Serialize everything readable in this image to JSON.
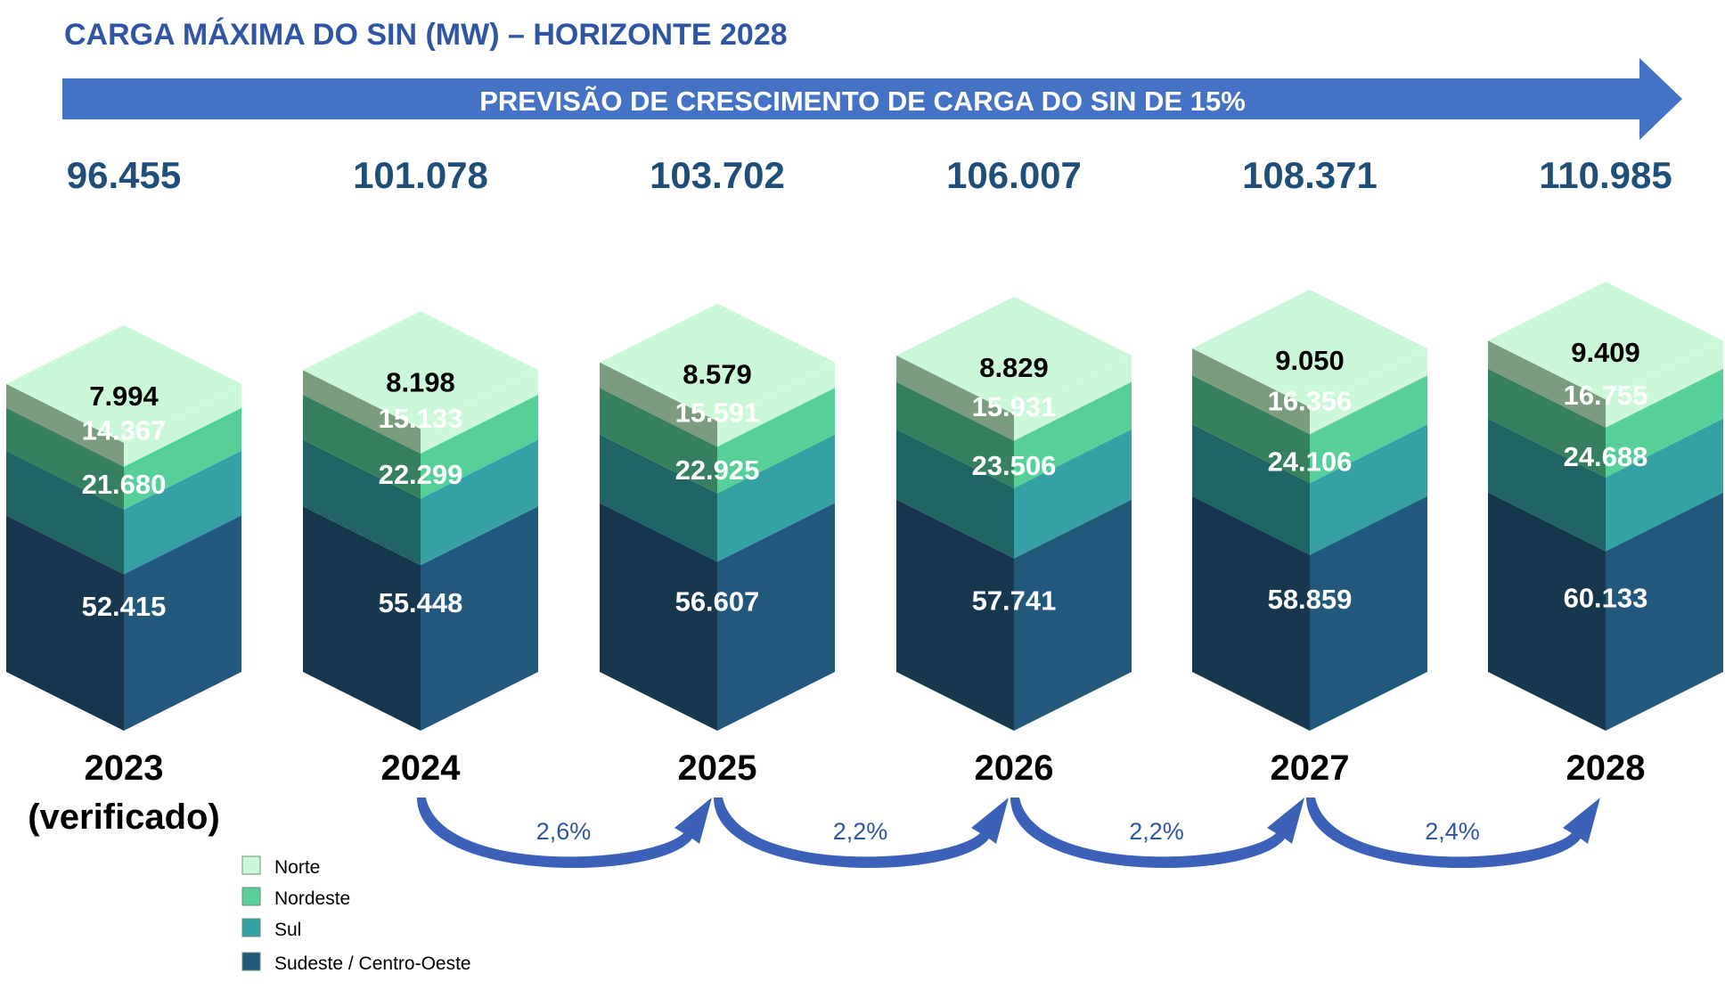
{
  "chart_data": {
    "type": "bar",
    "stacked": true,
    "style": "isometric-3d",
    "title": "CARGA MÁXIMA DO SIN (MW) – HORIZONTE 2028",
    "banner": "PREVISÃO DE CRESCIMENTO DE CARGA DO SIN DE 15%",
    "categories": [
      "2023",
      "2024",
      "2025",
      "2026",
      "2027",
      "2028"
    ],
    "category_notes": [
      "(verificado)",
      "",
      "",
      "",
      "",
      ""
    ],
    "totals_display": [
      "96.455",
      "101.078",
      "103.702",
      "106.007",
      "108.371",
      "110.985"
    ],
    "series": [
      {
        "name": "Sudeste / Centro-Oeste",
        "color": "#23587d",
        "values": [
          52415,
          55448,
          56607,
          57741,
          58859,
          60133
        ],
        "labels": [
          "52.415",
          "55.448",
          "56.607",
          "57.741",
          "58.859",
          "60.133"
        ]
      },
      {
        "name": "Sul",
        "color": "#35a1a4",
        "values": [
          21680,
          22299,
          22925,
          23506,
          24106,
          24688
        ],
        "labels": [
          "21.680",
          "22.299",
          "22.925",
          "23.506",
          "24.106",
          "24.688"
        ]
      },
      {
        "name": "Nordeste",
        "color": "#57cf99",
        "values": [
          14367,
          15133,
          15591,
          15931,
          16356,
          16755
        ],
        "labels": [
          "14.367",
          "15.133",
          "15.591",
          "15.931",
          "16.356",
          "16.755"
        ]
      },
      {
        "name": "Norte",
        "color": "#cbf8d8",
        "values": [
          7994,
          8198,
          8579,
          8829,
          9050,
          9409
        ],
        "labels": [
          "7.994",
          "8.198",
          "8.579",
          "8.829",
          "9.050",
          "9.409"
        ]
      }
    ],
    "growth": [
      {
        "from": "2024",
        "to": "2025",
        "label": "2,6%"
      },
      {
        "from": "2025",
        "to": "2026",
        "label": "2,2%"
      },
      {
        "from": "2026",
        "to": "2027",
        "label": "2,2%"
      },
      {
        "from": "2027",
        "to": "2028",
        "label": "2,4%"
      }
    ],
    "legend": {
      "placement": "bottom-left",
      "items": [
        {
          "label": "Norte",
          "color": "#cbf8d8"
        },
        {
          "label": "Nordeste",
          "color": "#57cf99"
        },
        {
          "label": "Sul",
          "color": "#35a1a4"
        },
        {
          "label": "Sudeste / Centro-Oeste",
          "color": "#23587d"
        }
      ]
    },
    "colors": {
      "title": "#2f55a4",
      "banner": "#4472c4",
      "totals": "#1f4e79",
      "growth_arrow": "#3b62b8"
    }
  }
}
